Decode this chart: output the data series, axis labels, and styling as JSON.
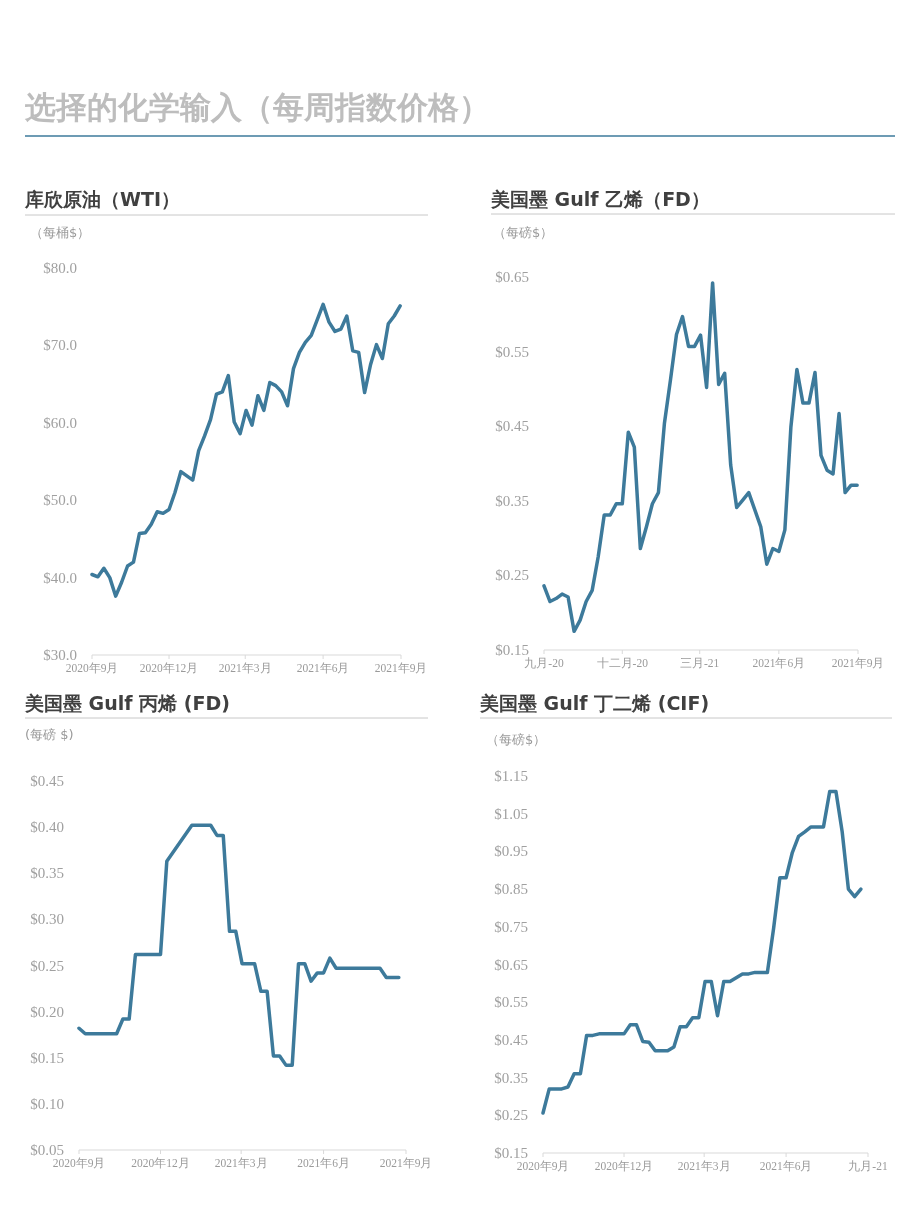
{
  "chart_data": [
    {
      "type": "other",
      "title": "选择的化学输入（每周指数价格）"
    },
    {
      "type": "line",
      "title": "库欣原油（WTI）",
      "ylabel": "（每桶$）",
      "color": "#3d7a9b",
      "x": [
        "2020-09-01",
        "2020-09-08",
        "2020-09-15",
        "2020-09-22",
        "2020-09-29",
        "2020-10-06",
        "2020-10-13",
        "2020-10-20",
        "2020-10-27",
        "2020-11-03",
        "2020-11-10",
        "2020-11-17",
        "2020-11-24",
        "2020-12-01",
        "2020-12-08",
        "2020-12-15",
        "2020-12-29",
        "2021-01-05",
        "2021-01-12",
        "2021-01-19",
        "2021-01-26",
        "2021-02-02",
        "2021-02-09",
        "2021-02-16",
        "2021-02-23",
        "2021-03-02",
        "2021-03-09",
        "2021-03-16",
        "2021-03-23",
        "2021-03-30",
        "2021-04-06",
        "2021-04-13",
        "2021-04-20",
        "2021-04-27",
        "2021-05-04",
        "2021-05-11",
        "2021-05-18",
        "2021-05-25",
        "2021-06-01",
        "2021-06-08",
        "2021-06-15",
        "2021-06-22",
        "2021-06-29",
        "2021-07-06",
        "2021-07-13",
        "2021-07-20",
        "2021-07-27",
        "2021-08-03",
        "2021-08-10",
        "2021-08-17",
        "2021-08-24",
        "2021-08-31"
      ],
      "values": [
        40.4,
        40.1,
        41.2,
        40.0,
        37.6,
        39.4,
        41.5,
        42.0,
        45.7,
        45.8,
        46.9,
        48.5,
        48.3,
        48.8,
        51.0,
        53.7,
        52.6,
        56.4,
        58.3,
        60.4,
        63.7,
        64.0,
        66.1,
        60.1,
        58.6,
        61.6,
        59.7,
        63.5,
        61.6,
        65.2,
        64.8,
        64.0,
        62.2,
        67.0,
        69.1,
        70.4,
        71.3,
        73.3,
        75.3,
        73.0,
        71.8,
        72.1,
        73.8,
        69.3,
        69.1,
        63.9,
        67.5,
        70.1,
        68.3,
        72.8,
        73.8,
        75.1
      ],
      "xlim": [
        "2020-09-01",
        "2021-09-01"
      ],
      "ylim": [
        30,
        80
      ],
      "xticks": [
        {
          "value": "2020-09-01",
          "label": "2020年9月"
        },
        {
          "value": "2020-12-01",
          "label": "2020年12月"
        },
        {
          "value": "2021-03-01",
          "label": "2021年3月"
        },
        {
          "value": "2021-06-01",
          "label": "2021年6月"
        },
        {
          "value": "2021-09-01",
          "label": "2021年9月"
        }
      ],
      "yticks": [
        {
          "value": 30,
          "label": "$30.0"
        },
        {
          "value": 40,
          "label": "$40.0"
        },
        {
          "value": 50,
          "label": "$50.0"
        },
        {
          "value": 60,
          "label": "$60.0"
        },
        {
          "value": 70,
          "label": "$70.0"
        },
        {
          "value": 80,
          "label": "$80.0"
        }
      ]
    },
    {
      "type": "line",
      "title": "美国墨 Gulf 乙烯（FD）",
      "ylabel": "（每磅$）",
      "color": "#3d7a9b",
      "x": [
        "2020-09-01",
        "2020-09-08",
        "2020-09-15",
        "2020-09-22",
        "2020-09-29",
        "2020-10-06",
        "2020-10-13",
        "2020-10-20",
        "2020-10-27",
        "2020-11-03",
        "2020-11-10",
        "2020-11-17",
        "2020-11-24",
        "2020-12-01",
        "2020-12-08",
        "2020-12-15",
        "2020-12-22",
        "2020-12-29",
        "2021-01-05",
        "2021-01-12",
        "2021-01-19",
        "2021-01-26",
        "2021-02-02",
        "2021-02-09",
        "2021-02-16",
        "2021-02-23",
        "2021-03-02",
        "2021-03-09",
        "2021-03-16",
        "2021-03-23",
        "2021-03-30",
        "2021-04-06",
        "2021-04-13",
        "2021-04-20",
        "2021-04-27",
        "2021-05-11",
        "2021-05-18",
        "2021-05-25",
        "2021-06-01",
        "2021-06-08",
        "2021-06-15",
        "2021-06-22",
        "2021-06-29",
        "2021-07-06",
        "2021-07-13",
        "2021-07-20",
        "2021-07-27",
        "2021-08-03",
        "2021-08-10",
        "2021-08-17",
        "2021-08-24",
        "2021-08-31"
      ],
      "values": [
        0.236,
        0.215,
        0.219,
        0.225,
        0.221,
        0.175,
        0.19,
        0.215,
        0.23,
        0.275,
        0.331,
        0.331,
        0.346,
        0.346,
        0.442,
        0.422,
        0.286,
        0.315,
        0.346,
        0.361,
        0.454,
        0.512,
        0.573,
        0.597,
        0.557,
        0.557,
        0.572,
        0.502,
        0.642,
        0.506,
        0.521,
        0.398,
        0.341,
        0.351,
        0.361,
        0.315,
        0.265,
        0.286,
        0.282,
        0.311,
        0.449,
        0.526,
        0.481,
        0.481,
        0.522,
        0.411,
        0.391,
        0.386,
        0.467,
        0.361,
        0.371,
        0.371
      ],
      "xlim": [
        "2020-09-01",
        "2021-09-01"
      ],
      "ylim": [
        0.15,
        0.65
      ],
      "xticks": [
        {
          "value": "2020-09-01",
          "label": "九月-20"
        },
        {
          "value": "2020-12-01",
          "label": "十二月-20"
        },
        {
          "value": "2021-03-01",
          "label": "三月-21"
        },
        {
          "value": "2021-06-01",
          "label": "2021年6月"
        },
        {
          "value": "2021-09-01",
          "label": "2021年9月"
        }
      ],
      "yticks": [
        {
          "value": 0.15,
          "label": "$0.15"
        },
        {
          "value": 0.25,
          "label": "$0.25"
        },
        {
          "value": 0.35,
          "label": "$0.35"
        },
        {
          "value": 0.45,
          "label": "$0.45"
        },
        {
          "value": 0.55,
          "label": "$0.55"
        },
        {
          "value": 0.65,
          "label": "$0.65"
        }
      ]
    },
    {
      "type": "line",
      "title": "美国墨 Gulf 丙烯 (FD)",
      "ylabel": "(每磅 $)",
      "color": "#3d7a9b",
      "x": [
        "2020-09-01",
        "2020-09-08",
        "2020-10-13",
        "2020-10-20",
        "2020-10-27",
        "2020-11-03",
        "2020-12-01",
        "2020-12-08",
        "2021-01-05",
        "2021-01-26",
        "2021-02-02",
        "2021-02-09",
        "2021-02-16",
        "2021-02-23",
        "2021-03-02",
        "2021-03-16",
        "2021-03-23",
        "2021-03-30",
        "2021-04-06",
        "2021-04-13",
        "2021-04-20",
        "2021-04-27",
        "2021-05-04",
        "2021-05-11",
        "2021-05-18",
        "2021-05-25",
        "2021-06-01",
        "2021-06-08",
        "2021-06-15",
        "2021-08-03",
        "2021-08-10",
        "2021-08-24"
      ],
      "values": [
        0.182,
        0.176,
        0.176,
        0.192,
        0.192,
        0.262,
        0.262,
        0.363,
        0.402,
        0.402,
        0.391,
        0.391,
        0.287,
        0.287,
        0.252,
        0.252,
        0.222,
        0.222,
        0.152,
        0.152,
        0.142,
        0.142,
        0.252,
        0.252,
        0.233,
        0.242,
        0.242,
        0.258,
        0.247,
        0.247,
        0.237,
        0.237
      ],
      "xlim": [
        "2020-09-01",
        "2021-09-01"
      ],
      "ylim": [
        0.05,
        0.45
      ],
      "xticks": [
        {
          "value": "2020-09-01",
          "label": "2020年9月"
        },
        {
          "value": "2020-12-01",
          "label": "2020年12月"
        },
        {
          "value": "2021-03-01",
          "label": "2021年3月"
        },
        {
          "value": "2021-06-01",
          "label": "2021年6月"
        },
        {
          "value": "2021-09-01",
          "label": "2021年9月"
        }
      ],
      "yticks": [
        {
          "value": 0.05,
          "label": "$0.05"
        },
        {
          "value": 0.1,
          "label": "$0.10"
        },
        {
          "value": 0.15,
          "label": "$0.15"
        },
        {
          "value": 0.2,
          "label": "$0.20"
        },
        {
          "value": 0.25,
          "label": "$0.25"
        },
        {
          "value": 0.3,
          "label": "$0.30"
        },
        {
          "value": 0.35,
          "label": "$0.35"
        },
        {
          "value": 0.4,
          "label": "$0.40"
        },
        {
          "value": 0.45,
          "label": "$0.45"
        }
      ]
    },
    {
      "type": "line",
      "title": "美国墨 Gulf 丁二烯 (CIF)",
      "ylabel": "（每磅$）",
      "color": "#3d7a9b",
      "x": [
        "2020-09-01",
        "2020-09-08",
        "2020-09-22",
        "2020-09-29",
        "2020-10-06",
        "2020-10-13",
        "2020-10-20",
        "2020-10-27",
        "2020-11-03",
        "2020-12-01",
        "2020-12-08",
        "2020-12-15",
        "2020-12-22",
        "2020-12-29",
        "2021-01-05",
        "2021-01-19",
        "2021-01-26",
        "2021-02-02",
        "2021-02-09",
        "2021-02-16",
        "2021-02-23",
        "2021-03-02",
        "2021-03-09",
        "2021-03-16",
        "2021-03-23",
        "2021-03-30",
        "2021-04-06",
        "2021-04-13",
        "2021-04-20",
        "2021-04-27",
        "2021-05-11",
        "2021-05-18",
        "2021-05-25",
        "2021-06-01",
        "2021-06-08",
        "2021-06-15",
        "2021-06-22",
        "2021-06-29",
        "2021-07-13",
        "2021-07-20",
        "2021-07-27",
        "2021-08-03",
        "2021-08-10",
        "2021-08-17",
        "2021-08-24"
      ],
      "values": [
        0.256,
        0.32,
        0.32,
        0.325,
        0.36,
        0.36,
        0.462,
        0.462,
        0.466,
        0.466,
        0.49,
        0.49,
        0.446,
        0.444,
        0.421,
        0.421,
        0.431,
        0.485,
        0.485,
        0.509,
        0.509,
        0.605,
        0.605,
        0.514,
        0.605,
        0.605,
        0.615,
        0.625,
        0.625,
        0.629,
        0.629,
        0.746,
        0.88,
        0.88,
        0.947,
        0.99,
        1.002,
        1.015,
        1.015,
        1.109,
        1.109,
        1.002,
        0.85,
        0.83,
        0.85
      ],
      "xlim": [
        "2020-09-01",
        "2021-09-01"
      ],
      "ylim": [
        0.15,
        1.15
      ],
      "xticks": [
        {
          "value": "2020-09-01",
          "label": "2020年9月"
        },
        {
          "value": "2020-12-01",
          "label": "2020年12月"
        },
        {
          "value": "2021-03-01",
          "label": "2021年3月"
        },
        {
          "value": "2021-06-01",
          "label": "2021年6月"
        },
        {
          "value": "2021-09-01",
          "label": "九月-21"
        }
      ],
      "yticks": [
        {
          "value": 0.15,
          "label": "$0.15"
        },
        {
          "value": 0.25,
          "label": "$0.25"
        },
        {
          "value": 0.35,
          "label": "$0.35"
        },
        {
          "value": 0.45,
          "label": "$0.45"
        },
        {
          "value": 0.55,
          "label": "$0.55"
        },
        {
          "value": 0.65,
          "label": "$0.65"
        },
        {
          "value": 0.75,
          "label": "$0.75"
        },
        {
          "value": 0.85,
          "label": "$0.85"
        },
        {
          "value": 0.95,
          "label": "$0.95"
        },
        {
          "value": 1.05,
          "label": "$1.05"
        },
        {
          "value": 1.15,
          "label": "$1.15"
        }
      ]
    }
  ]
}
